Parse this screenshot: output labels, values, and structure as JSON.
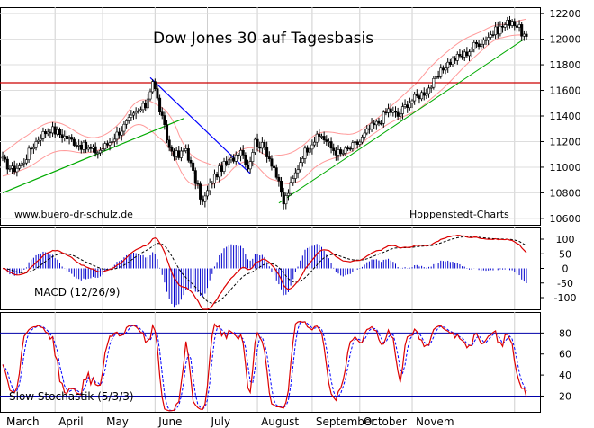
{
  "chart_data": [
    {
      "type": "candlestick",
      "title": "Dow Jones 30 auf Tagesbasis",
      "watermark_left": "www.buero-dr-schulz.de",
      "watermark_right": "Hoppenstedt-Charts",
      "ylim": [
        10550,
        12250
      ],
      "y_ticks": [
        10600,
        10800,
        11000,
        11200,
        11400,
        11600,
        11800,
        12000,
        12200
      ],
      "resistance_level": 11660,
      "x_labels": [
        "March",
        "April",
        "May",
        "June",
        "July",
        "August",
        "September",
        "October",
        "Novem"
      ],
      "close_series": [
        {
          "i": 0,
          "v": 11050
        },
        {
          "i": 4,
          "v": 10980
        },
        {
          "i": 8,
          "v": 11020
        },
        {
          "i": 12,
          "v": 11150
        },
        {
          "i": 16,
          "v": 11250
        },
        {
          "i": 20,
          "v": 11300
        },
        {
          "i": 25,
          "v": 11250
        },
        {
          "i": 30,
          "v": 11200
        },
        {
          "i": 35,
          "v": 11150
        },
        {
          "i": 40,
          "v": 11120
        },
        {
          "i": 44,
          "v": 11180
        },
        {
          "i": 48,
          "v": 11260
        },
        {
          "i": 52,
          "v": 11340
        },
        {
          "i": 56,
          "v": 11420
        },
        {
          "i": 60,
          "v": 11480
        },
        {
          "i": 63,
          "v": 11680
        },
        {
          "i": 66,
          "v": 11450
        },
        {
          "i": 70,
          "v": 11150
        },
        {
          "i": 74,
          "v": 11080
        },
        {
          "i": 77,
          "v": 11150
        },
        {
          "i": 80,
          "v": 10950
        },
        {
          "i": 84,
          "v": 10720
        },
        {
          "i": 88,
          "v": 10900
        },
        {
          "i": 92,
          "v": 11000
        },
        {
          "i": 96,
          "v": 11050
        },
        {
          "i": 100,
          "v": 11150
        },
        {
          "i": 103,
          "v": 11000
        },
        {
          "i": 106,
          "v": 11200
        },
        {
          "i": 110,
          "v": 11150
        },
        {
          "i": 114,
          "v": 11000
        },
        {
          "i": 118,
          "v": 10720
        },
        {
          "i": 122,
          "v": 10900
        },
        {
          "i": 126,
          "v": 11100
        },
        {
          "i": 130,
          "v": 11200
        },
        {
          "i": 134,
          "v": 11250
        },
        {
          "i": 138,
          "v": 11150
        },
        {
          "i": 142,
          "v": 11100
        },
        {
          "i": 146,
          "v": 11150
        },
        {
          "i": 150,
          "v": 11200
        },
        {
          "i": 154,
          "v": 11300
        },
        {
          "i": 158,
          "v": 11350
        },
        {
          "i": 162,
          "v": 11450
        },
        {
          "i": 166,
          "v": 11400
        },
        {
          "i": 170,
          "v": 11500
        },
        {
          "i": 174,
          "v": 11550
        },
        {
          "i": 178,
          "v": 11600
        },
        {
          "i": 182,
          "v": 11680
        },
        {
          "i": 186,
          "v": 11800
        },
        {
          "i": 190,
          "v": 11850
        },
        {
          "i": 194,
          "v": 11880
        },
        {
          "i": 198,
          "v": 11950
        },
        {
          "i": 202,
          "v": 12000
        },
        {
          "i": 206,
          "v": 12050
        },
        {
          "i": 210,
          "v": 12100
        },
        {
          "i": 214,
          "v": 12150
        },
        {
          "i": 217,
          "v": 12080
        },
        {
          "i": 220,
          "v": 12000
        }
      ],
      "series": [
        {
          "name": "Dow Jones 30"
        }
      ]
    },
    {
      "type": "line",
      "name": "MACD (12/26/9)",
      "label": "MACD (12/26/9)",
      "ylim": [
        -140,
        140
      ],
      "y_ticks": [
        100,
        50,
        0,
        -50,
        -100
      ]
    },
    {
      "type": "line",
      "name": "Slow Stochastik (5/3/3)",
      "label": "Slow Stochastik (5/3/3)",
      "ylim": [
        5,
        100
      ],
      "y_ticks": [
        80,
        60,
        40,
        20
      ],
      "levels": [
        80,
        20
      ]
    }
  ],
  "colors": {
    "candle": "#000000",
    "bollinger": "#ff9999",
    "resistance": "#cc0000",
    "uptrend": "#00aa00",
    "downtrend": "#0000ff",
    "macd": "#dd0000",
    "signal": "#000000",
    "histogram": "#0000cc",
    "stoch_k": "#dd0000",
    "stoch_d": "#0000ff",
    "stoch_levels": "#0000aa"
  }
}
